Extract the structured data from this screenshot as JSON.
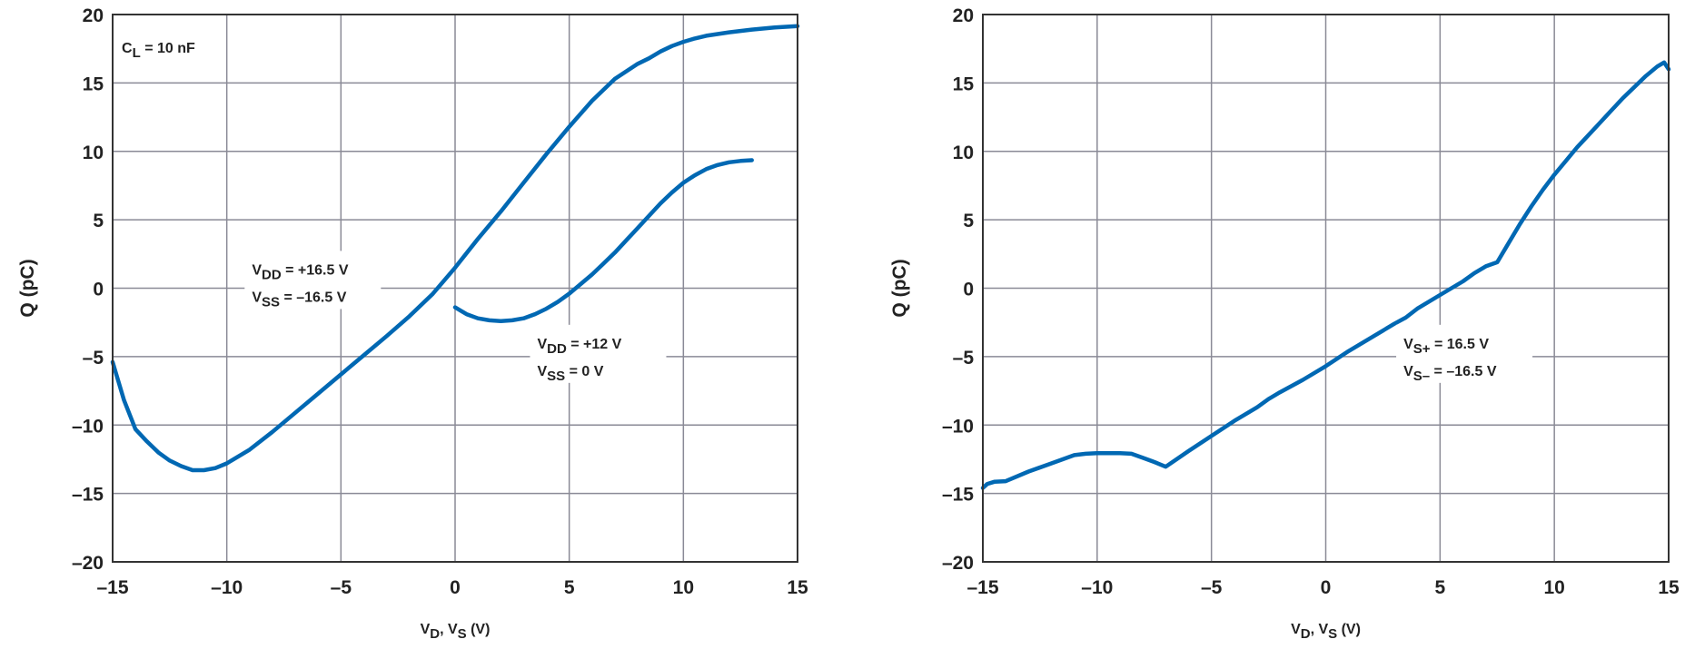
{
  "chart_data": [
    {
      "type": "line",
      "xlabel": {
        "v": "V",
        "s1": "D",
        "sep": ", V",
        "s2": "S",
        "unit": " (V)"
      },
      "ylabel": "Q (pC)",
      "xlim": [
        -15,
        15
      ],
      "ylim": [
        -20,
        20
      ],
      "xticks": [
        -15,
        -10,
        -5,
        0,
        5,
        10,
        15
      ],
      "yticks": [
        -20,
        -15,
        -10,
        -5,
        0,
        5,
        10,
        15,
        20
      ],
      "tick_labels_x": [
        "–15",
        "–10",
        "–5",
        "0",
        "5",
        "10",
        "15"
      ],
      "tick_labels_y": [
        "–20",
        "–15",
        "–10",
        "–5",
        "0",
        "5",
        "10",
        "15",
        "20"
      ],
      "grid": true,
      "line_color": "#0068b3",
      "annotations": [
        {
          "kind": "cl",
          "main": "C",
          "sub": "L",
          "rest": " = 10 nF",
          "x": -14.6,
          "y": 17.2
        },
        {
          "kind": "supply",
          "lines": [
            {
              "main": "V",
              "sub": "DD",
              "rest": " = +16.5 V"
            },
            {
              "main": "V",
              "sub": "SS",
              "rest": " = –16.5 V"
            }
          ],
          "x": -8.9,
          "y": 1.0
        },
        {
          "kind": "supply",
          "lines": [
            {
              "main": "V",
              "sub": "DD",
              "rest": " = +12 V"
            },
            {
              "main": "V",
              "sub": "SS",
              "rest": " = 0 V"
            }
          ],
          "x": 3.6,
          "y": -4.4
        }
      ],
      "series": [
        {
          "x": [
            -15,
            -14.5,
            -14,
            -13.5,
            -13,
            -12.5,
            -12,
            -11.5,
            -11,
            -10.5,
            -10,
            -9,
            -8,
            -7,
            -6,
            -5,
            -4,
            -3,
            -2,
            -1,
            0,
            1,
            2,
            3,
            4,
            5,
            6,
            7,
            8,
            8.5,
            9,
            9.5,
            10,
            10.5,
            11,
            12,
            13,
            14,
            15
          ],
          "y": [
            -5.4,
            -8.2,
            -10.3,
            -11.2,
            -12.0,
            -12.6,
            -13.0,
            -13.3,
            -13.3,
            -13.15,
            -12.8,
            -11.8,
            -10.5,
            -9.1,
            -7.7,
            -6.3,
            -4.9,
            -3.5,
            -2.05,
            -0.45,
            1.5,
            3.6,
            5.6,
            7.7,
            9.8,
            11.8,
            13.7,
            15.3,
            16.4,
            16.8,
            17.3,
            17.7,
            18.0,
            18.25,
            18.45,
            18.7,
            18.9,
            19.05,
            19.15
          ]
        },
        {
          "x": [
            0,
            0.5,
            1,
            1.5,
            2,
            2.5,
            3,
            3.5,
            4,
            4.5,
            5,
            5.5,
            6,
            6.5,
            7,
            7.5,
            8,
            8.5,
            9,
            9.5,
            10,
            10.5,
            11,
            11.5,
            12,
            12.5,
            13
          ],
          "y": [
            -1.4,
            -1.9,
            -2.2,
            -2.35,
            -2.4,
            -2.35,
            -2.2,
            -1.9,
            -1.5,
            -1.0,
            -0.4,
            0.3,
            1.0,
            1.8,
            2.6,
            3.5,
            4.4,
            5.3,
            6.2,
            7.0,
            7.7,
            8.25,
            8.7,
            9.0,
            9.2,
            9.3,
            9.35
          ]
        }
      ]
    },
    {
      "type": "line",
      "xlabel": {
        "v": "V",
        "s1": "D",
        "sep": ", V",
        "s2": "S",
        "unit": " (V)"
      },
      "ylabel": "Q (pC)",
      "xlim": [
        -15,
        15
      ],
      "ylim": [
        -20,
        20
      ],
      "xticks": [
        -15,
        -10,
        -5,
        0,
        5,
        10,
        15
      ],
      "yticks": [
        -20,
        -15,
        -10,
        -5,
        0,
        5,
        10,
        15,
        20
      ],
      "tick_labels_x": [
        "–15",
        "–10",
        "–5",
        "0",
        "5",
        "10",
        "15"
      ],
      "tick_labels_y": [
        "–20",
        "–15",
        "–10",
        "–5",
        "0",
        "5",
        "10",
        "15",
        "20"
      ],
      "grid": true,
      "line_color": "#0068b3",
      "annotations": [
        {
          "kind": "supply",
          "lines": [
            {
              "main": "V",
              "sub": "S+",
              "rest": " = 16.5 V"
            },
            {
              "main": "V",
              "sub": "S–",
              "rest": " = –16.5 V"
            }
          ],
          "x": 3.4,
          "y": -4.4
        }
      ],
      "series": [
        {
          "x": [
            -15,
            -14.8,
            -14.5,
            -14,
            -13,
            -12,
            -11,
            -10.5,
            -10,
            -9,
            -8.5,
            -8,
            -7.5,
            -7,
            -6,
            -5,
            -4,
            -3,
            -2.5,
            -2,
            -1,
            0,
            1,
            2,
            3,
            3.5,
            4,
            5,
            6,
            6.5,
            7,
            7.5,
            8,
            8.5,
            9,
            9.5,
            10,
            10.5,
            11,
            11.5,
            12,
            12.5,
            13,
            13.5,
            14,
            14.5,
            14.8,
            15
          ],
          "y": [
            -14.6,
            -14.3,
            -14.15,
            -14.1,
            -13.4,
            -12.8,
            -12.2,
            -12.1,
            -12.05,
            -12.05,
            -12.1,
            -12.4,
            -12.7,
            -13.05,
            -11.9,
            -10.8,
            -9.7,
            -8.7,
            -8.1,
            -7.6,
            -6.7,
            -5.7,
            -4.6,
            -3.6,
            -2.6,
            -2.15,
            -1.5,
            -0.5,
            0.5,
            1.1,
            1.6,
            1.9,
            3.3,
            4.7,
            6.0,
            7.2,
            8.3,
            9.3,
            10.3,
            11.2,
            12.1,
            13.0,
            13.9,
            14.7,
            15.5,
            16.2,
            16.5,
            16.0
          ]
        }
      ]
    }
  ]
}
